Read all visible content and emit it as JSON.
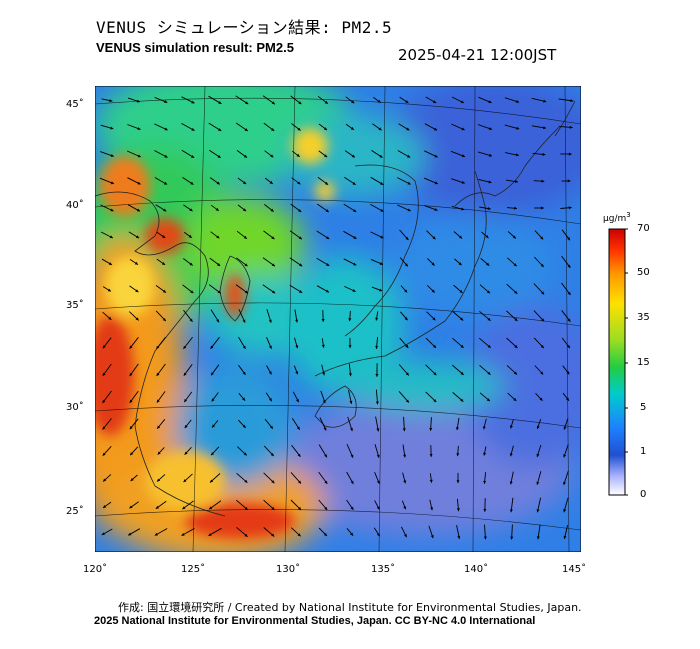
{
  "header": {
    "title_jp": "VENUS シミュレーション結果: PM2.5",
    "title_en": "VENUS simulation result: PM2.5",
    "timestamp": "2025-04-21 12:00JST"
  },
  "map": {
    "lat_labels": [
      "45˚",
      "40˚",
      "35˚",
      "30˚",
      "25˚"
    ],
    "lon_labels": [
      "120˚",
      "125˚",
      "130˚",
      "135˚",
      "140˚",
      "145˚"
    ],
    "layers": [
      "pm25-concentration-field",
      "wind-vectors",
      "coastlines",
      "graticule"
    ]
  },
  "colorbar": {
    "unit": "μg/m",
    "unit_superscript": "3",
    "ticks": [
      "70",
      "50",
      "35",
      "15",
      "5",
      "1",
      "0"
    ],
    "colors": [
      "#ff0000",
      "#ff9900",
      "#ffe000",
      "#22cc22",
      "#00cccc",
      "#1e90ff",
      "#2050d0",
      "#aab4ff",
      "#ffffff"
    ]
  },
  "footer": {
    "credit_line": "作成: 国立環境研究所 / Created by National Institute for Environmental Studies, Japan.",
    "license_line": "2025 National Institute for Environmental Studies, Japan. CC BY-NC 4.0 International"
  }
}
